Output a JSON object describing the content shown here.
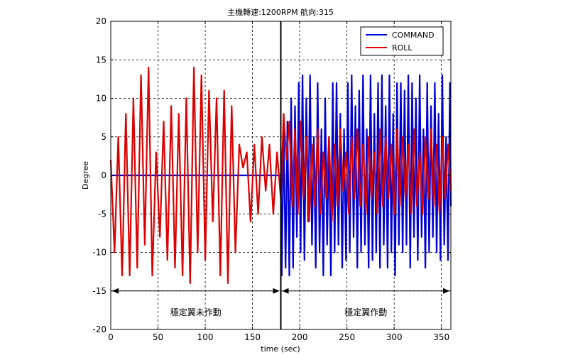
{
  "chart_data": {
    "type": "line",
    "title": "主機轉速:1200RPM 航向:315",
    "xlabel": "time (sec)",
    "ylabel": "Degree",
    "xlim": [
      0,
      360
    ],
    "ylim": [
      -20,
      20
    ],
    "xticks": [
      0,
      50,
      100,
      150,
      200,
      250,
      300,
      350
    ],
    "yticks": [
      -20,
      -15,
      -10,
      -5,
      0,
      5,
      10,
      15,
      20
    ],
    "grid": true,
    "legend_position": "top-right",
    "series": [
      {
        "name": "COMMAND",
        "color": "#0000d4",
        "x": [
          0,
          180,
          181,
          183,
          185,
          187,
          189,
          191,
          193,
          195,
          197,
          199,
          201,
          203,
          205,
          207,
          209,
          211,
          213,
          215,
          217,
          219,
          221,
          223,
          225,
          227,
          229,
          231,
          233,
          235,
          237,
          239,
          241,
          243,
          245,
          247,
          249,
          251,
          253,
          255,
          257,
          259,
          261,
          263,
          265,
          267,
          269,
          271,
          273,
          275,
          277,
          279,
          281,
          283,
          285,
          287,
          289,
          291,
          293,
          295,
          297,
          299,
          301,
          303,
          305,
          307,
          309,
          311,
          313,
          315,
          317,
          319,
          321,
          323,
          325,
          327,
          329,
          331,
          333,
          335,
          337,
          339,
          341,
          343,
          345,
          347,
          349,
          351,
          353,
          355,
          357,
          359,
          360
        ],
        "y": [
          0,
          0,
          -13,
          6,
          -12,
          7,
          -13,
          10,
          -12,
          9,
          -8,
          12,
          -10,
          13,
          -11,
          10,
          -6,
          13,
          -9,
          5,
          -12,
          12,
          -10,
          6,
          -13,
          10,
          -9,
          5,
          -13,
          12,
          -10,
          12,
          -9,
          8,
          -12,
          6,
          -11,
          12,
          -10,
          13,
          -8,
          9,
          -12,
          11,
          -10,
          13,
          -9,
          6,
          -12,
          13,
          -11,
          8,
          -10,
          12,
          -12,
          13,
          -9,
          9,
          -12,
          13,
          -10,
          8,
          -13,
          12,
          -9,
          12,
          -10,
          11,
          -9,
          13,
          -12,
          12,
          -8,
          10,
          -11,
          13,
          -8,
          6,
          -12,
          12,
          -10,
          9,
          -8,
          12,
          -10,
          8,
          -11,
          13,
          -9,
          5,
          -11,
          12,
          -4
        ]
      },
      {
        "name": "ROLL",
        "color": "#dc0000",
        "x": [
          0,
          4,
          8,
          12,
          16,
          20,
          24,
          28,
          32,
          36,
          40,
          44,
          48,
          52,
          56,
          60,
          64,
          68,
          72,
          76,
          80,
          84,
          88,
          92,
          96,
          100,
          104,
          108,
          112,
          116,
          120,
          124,
          128,
          132,
          136,
          140,
          144,
          148,
          152,
          156,
          160,
          164,
          168,
          172,
          176,
          180,
          183,
          186,
          189,
          192,
          195,
          198,
          201,
          204,
          207,
          210,
          213,
          216,
          219,
          222,
          225,
          228,
          231,
          234,
          237,
          240,
          243,
          246,
          249,
          252,
          255,
          258,
          261,
          264,
          267,
          270,
          273,
          276,
          279,
          282,
          285,
          288,
          291,
          294,
          297,
          300,
          303,
          306,
          309,
          312,
          315,
          318,
          321,
          324,
          327,
          330,
          333,
          336,
          339,
          342,
          345,
          348,
          351,
          354,
          357,
          360
        ],
        "y": [
          2,
          -10,
          5,
          -13,
          8,
          -13,
          10,
          -12,
          13,
          -9,
          14,
          -13,
          3,
          -8,
          7,
          -11,
          9,
          -12,
          8,
          -13,
          10,
          -14,
          14,
          -10,
          13,
          -11,
          11,
          -6,
          10,
          -13,
          11,
          -14,
          9,
          -10,
          4,
          1,
          3,
          -6,
          4,
          -5,
          5,
          -2,
          4,
          -5,
          3,
          -3,
          8,
          2,
          7,
          -4,
          6,
          -5,
          7,
          -3,
          5,
          -6,
          4,
          -4,
          6,
          -5,
          3,
          -3,
          5,
          -6,
          4,
          -4,
          6,
          -2,
          3,
          -5,
          5,
          -3,
          6,
          -4,
          4,
          -5,
          5,
          -3,
          3,
          -5,
          6,
          -4,
          5,
          -3,
          4,
          -5,
          6,
          -4,
          5,
          -3,
          4,
          -5,
          6,
          -4,
          3,
          -5,
          5,
          -3,
          6,
          -4,
          4,
          -5,
          5,
          -3,
          4,
          -2
        ]
      }
    ],
    "annotations": [
      {
        "text": "穩定翼未作動",
        "x_from": 0,
        "x_to": 180,
        "y": -15
      },
      {
        "text": "穩定翼作動",
        "x_from": 180,
        "x_to": 360,
        "y": -15
      }
    ],
    "marker_line_x": 180
  }
}
